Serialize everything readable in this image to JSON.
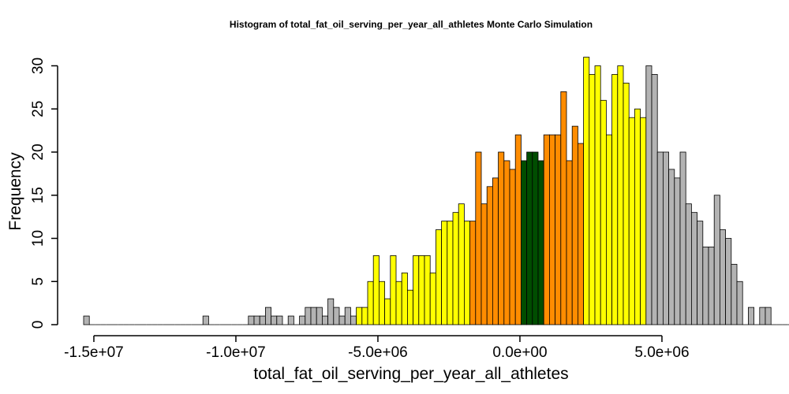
{
  "chart_data": {
    "type": "bar",
    "title": "Histogram of  total_fat_oil_serving_per_year_all_athletes  Monte Carlo Simulation",
    "xlabel": "total_fat_oil_serving_per_year_all_athletes",
    "ylabel": "Frequency",
    "x_ticks": [
      -15000000,
      -10000000,
      -5000000,
      0,
      5000000
    ],
    "x_tick_labels": [
      "-1.5e+07",
      "-1.0e+07",
      "-5.0e+06",
      "0.0e+00",
      "5.0e+06"
    ],
    "y_ticks": [
      0,
      5,
      10,
      15,
      20,
      25,
      30
    ],
    "y_tick_labels": [
      "0",
      "5",
      "10",
      "15",
      "20",
      "25",
      "30"
    ],
    "xlim": [
      -15360000,
      7640000
    ],
    "ylim": [
      0,
      31
    ],
    "bin_start": -15360000,
    "bin_width": 200000,
    "frequencies": [
      1,
      0,
      0,
      0,
      0,
      0,
      0,
      0,
      0,
      0,
      0,
      0,
      0,
      0,
      0,
      0,
      0,
      0,
      0,
      0,
      0,
      1,
      0,
      0,
      0,
      0,
      0,
      0,
      0,
      1,
      1,
      1,
      2,
      1,
      1,
      0,
      1,
      0,
      1,
      2,
      2,
      2,
      1,
      3,
      2,
      1,
      2,
      1,
      2,
      2,
      5,
      8,
      5,
      3,
      8,
      5,
      6,
      4,
      8,
      8,
      8,
      6,
      11,
      12,
      12,
      13,
      14,
      12,
      12,
      20,
      14,
      16,
      17,
      20,
      19,
      18,
      22,
      19,
      20,
      20,
      19,
      22,
      22,
      22,
      27,
      19,
      23,
      21,
      31,
      29,
      30,
      26,
      22,
      29,
      30,
      28,
      24,
      25,
      24,
      30,
      29,
      20,
      20,
      18,
      17,
      20,
      14,
      13,
      12,
      9,
      9,
      15,
      11,
      10,
      7,
      5,
      0,
      2,
      0,
      2,
      2,
      0,
      0,
      0,
      0,
      1,
      0,
      1
    ],
    "band_colors": {
      "tail": "#b3b3b3",
      "outer": "#ffff00",
      "inner": "#ff8c00",
      "center": "#004d00"
    },
    "bands": [
      {
        "band": "tail",
        "from": -15360000,
        "to": -5760000
      },
      {
        "band": "outer",
        "from": -5760000,
        "to": -1760000
      },
      {
        "band": "inner",
        "from": -1760000,
        "to": 40000
      },
      {
        "band": "center",
        "from": 40000,
        "to": 840000
      },
      {
        "band": "inner",
        "from": 840000,
        "to": 2240000
      },
      {
        "band": "outer",
        "from": 2240000,
        "to": 4440000
      },
      {
        "band": "tail",
        "from": 4440000,
        "to": 7640000
      }
    ]
  }
}
